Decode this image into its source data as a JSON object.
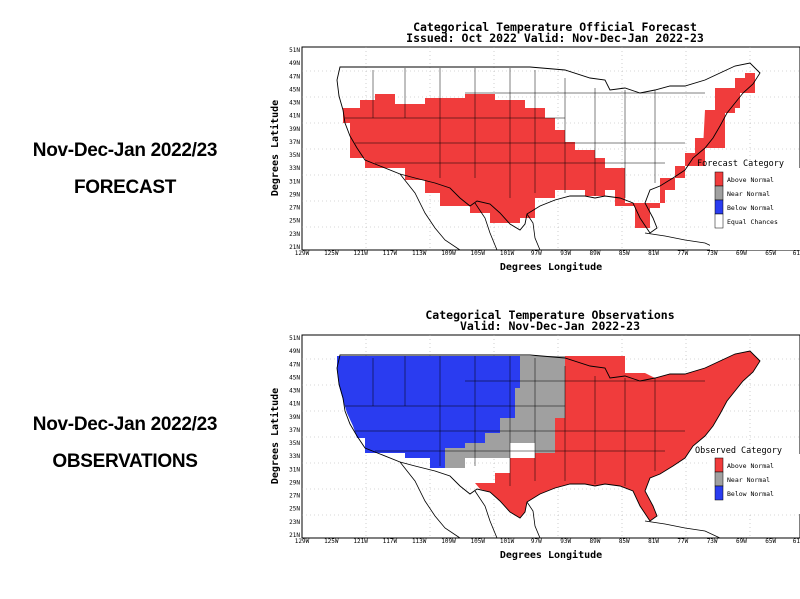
{
  "left_labels": {
    "forecast_period": "Nov-Dec-Jan 2022/23",
    "forecast_word": "FORECAST",
    "obs_period": "Nov-Dec-Jan 2022/23",
    "obs_word": "OBSERVATIONS"
  },
  "axes": {
    "ylabel": "Degrees Latitude",
    "xlabel": "Degrees Longitude",
    "lat_ticks": [
      "51N",
      "49N",
      "47N",
      "45N",
      "43N",
      "41N",
      "39N",
      "37N",
      "35N",
      "33N",
      "31N",
      "29N",
      "27N",
      "25N",
      "23N",
      "21N"
    ],
    "lon_ticks": [
      "129W",
      "125W",
      "121W",
      "117W",
      "113W",
      "109W",
      "105W",
      "101W",
      "97W",
      "93W",
      "89W",
      "85W",
      "81W",
      "77W",
      "73W",
      "69W",
      "65W",
      "61"
    ]
  },
  "forecast": {
    "title_line1": "Categorical Temperature Official Forecast",
    "title_line2": "Issued: Oct 2022 Valid: Nov-Dec-Jan 2022-23",
    "legend_title": "Forecast Category",
    "legend": [
      {
        "label": "Above Normal",
        "color": "#f03c3c"
      },
      {
        "label": "Near Normal",
        "color": "#a0a0a0"
      },
      {
        "label": "Below Normal",
        "color": "#2a3cf0"
      },
      {
        "label": "Equal Chances",
        "color": "#ffffff"
      }
    ]
  },
  "observations": {
    "title_line1": "Categorical Temperature Observations",
    "title_line2": "Valid: Nov-Dec-Jan 2022-23",
    "legend_title": "Observed Category",
    "legend": [
      {
        "label": "Above Normal",
        "color": "#f03c3c"
      },
      {
        "label": "Near Normal",
        "color": "#a0a0a0"
      },
      {
        "label": "Below Normal",
        "color": "#2a3cf0"
      }
    ]
  },
  "colors": {
    "above": "#f03c3c",
    "near": "#a0a0a0",
    "below": "#2a3cf0"
  }
}
